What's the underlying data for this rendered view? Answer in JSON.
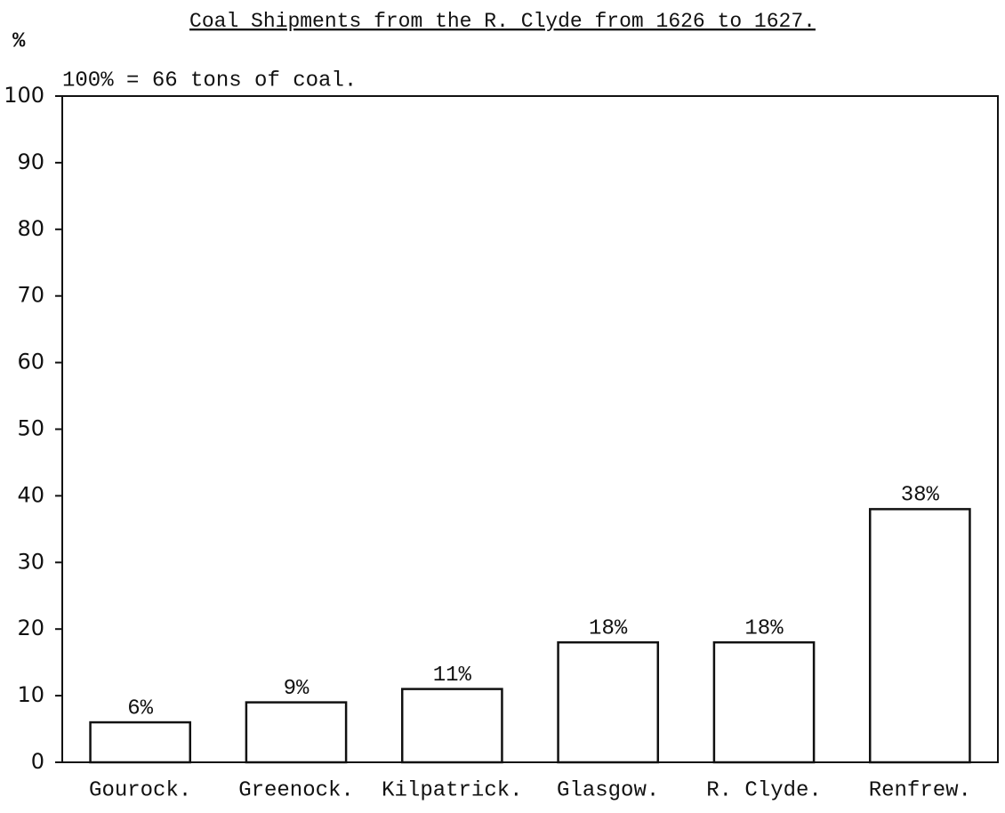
{
  "chart_data": {
    "type": "bar",
    "title": "Coal Shipments from the R. Clyde from 1626 to 1627.",
    "subtitle": "100% = 66 tons of coal.",
    "y_label": "%",
    "categories": [
      "Gourock.",
      "Greenock.",
      "Kilpatrick.",
      "Glasgow.",
      "R. Clyde.",
      "Renfrew."
    ],
    "values": [
      6,
      9,
      11,
      18,
      18,
      38
    ],
    "value_labels": [
      "6%",
      "9%",
      "11%",
      "18%",
      "18%",
      "38%"
    ],
    "color": "#ffffff",
    "ylim": [
      0,
      100
    ],
    "yticks": [
      0,
      10,
      20,
      30,
      40,
      50,
      60,
      70,
      80,
      90,
      100
    ],
    "grid": false
  }
}
